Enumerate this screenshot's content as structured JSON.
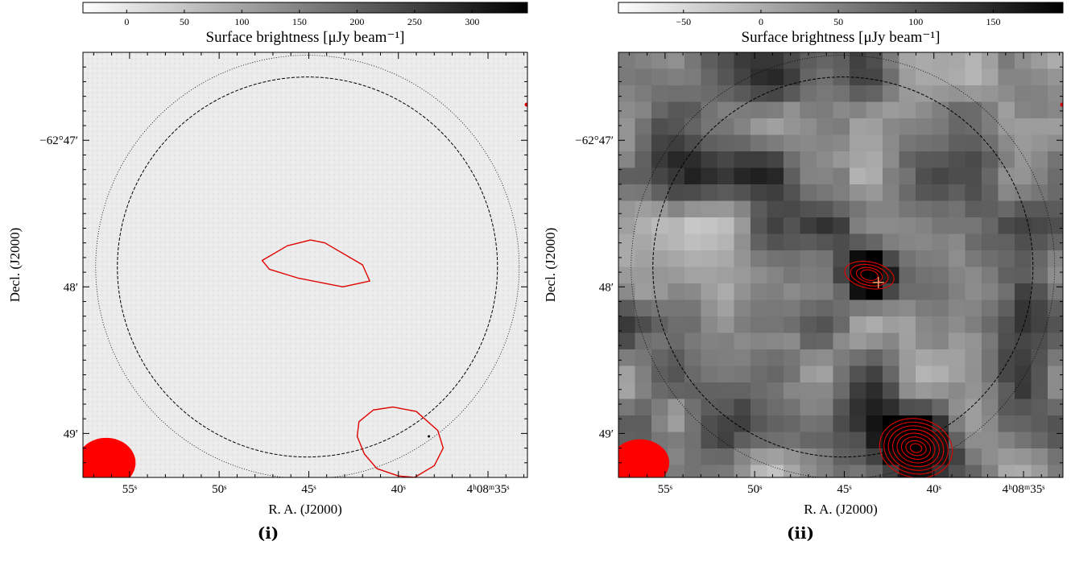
{
  "chart_data": [
    {
      "type": "heatmap",
      "panel_label": "(i)",
      "colorbar": {
        "label": "Surface brightness [μJy beam⁻¹]",
        "range": [
          -38,
          348
        ],
        "ticks": [
          0,
          50,
          100,
          150,
          200,
          250,
          300
        ],
        "colormap": "gray_r"
      },
      "xlabel": "R. A. (J2000)",
      "ylabel": "Decl. (J2000)",
      "x_ticks": [
        {
          "label": "55s",
          "value_s": 55
        },
        {
          "label": "50s",
          "value_s": 50
        },
        {
          "label": "45s",
          "value_s": 45
        },
        {
          "label": "40s",
          "value_s": 40
        },
        {
          "label": "4h08m35s",
          "value_s": 35
        }
      ],
      "y_ticks": [
        {
          "label": "−62°47′",
          "value_arcmin": -47
        },
        {
          "label": "48′",
          "value_arcmin": -48
        },
        {
          "label": "49′",
          "value_arcmin": -49
        }
      ],
      "xlim_s": [
        57.6,
        32.8
      ],
      "ylim_arcmin": [
        -46.4,
        -49.3
      ],
      "contours": [
        {
          "color": "#e00000",
          "ra_s": [
            44.1,
            44.9,
            46.2,
            47.6,
            47.2,
            45.6,
            43.1,
            41.6,
            42.0,
            44.1
          ],
          "dec_arcmin": [
            -47.7,
            -47.68,
            -47.72,
            -47.82,
            -47.88,
            -47.94,
            -48.0,
            -47.96,
            -47.85,
            -47.7
          ]
        },
        {
          "color": "#e00000",
          "ra_s": [
            40.3,
            39.0,
            37.8,
            37.5,
            38.0,
            39.1,
            40.0,
            41.2,
            41.9,
            42.3,
            42.2,
            41.4,
            40.3
          ],
          "dec_arcmin": [
            -48.82,
            -48.85,
            -48.98,
            -49.1,
            -49.22,
            -49.3,
            -49.29,
            -49.24,
            -49.14,
            -49.02,
            -48.92,
            -48.84,
            -48.82
          ]
        }
      ],
      "beam": {
        "ra_s": 56.3,
        "dec_arcmin": -49.2,
        "major_arcmin": 0.2,
        "minor_arcmin": 0.17,
        "color": "#ff0000"
      }
    },
    {
      "type": "heatmap",
      "panel_label": "(ii)",
      "colorbar": {
        "label": "Surface brightness [μJy beam⁻¹]",
        "range": [
          -92,
          195
        ],
        "ticks": [
          -50,
          0,
          50,
          100,
          150
        ],
        "colormap": "gray_r"
      },
      "xlabel": "R. A. (J2000)",
      "ylabel": "Decl. (J2000)",
      "x_ticks": [
        {
          "label": "55s",
          "value_s": 55
        },
        {
          "label": "50s",
          "value_s": 50
        },
        {
          "label": "45s",
          "value_s": 45
        },
        {
          "label": "40s",
          "value_s": 40
        },
        {
          "label": "4h08m35s",
          "value_s": 35
        }
      ],
      "y_ticks": [
        {
          "label": "−62°47′",
          "value_arcmin": -47
        },
        {
          "label": "48′",
          "value_arcmin": -48
        },
        {
          "label": "49′",
          "value_arcmin": -49
        }
      ],
      "xlim_s": [
        57.6,
        32.8
      ],
      "ylim_arcmin": [
        -46.4,
        -49.3
      ],
      "sources": [
        {
          "ra_s": 43.6,
          "dec_arcmin": -47.92,
          "peak": 195,
          "width_arcmin": 0.09
        },
        {
          "ra_s": 41.0,
          "dec_arcmin": -49.1,
          "peak": 190,
          "width_arcmin": 0.14
        }
      ],
      "contours": [
        {
          "color": "#e00000",
          "center_ra_s": 43.6,
          "center_dec_arcmin": -47.92,
          "semi_axes_arcmin": [
            [
              0.17,
              0.09
            ],
            [
              0.13,
              0.07
            ],
            [
              0.09,
              0.05
            ],
            [
              0.06,
              0.035
            ]
          ]
        },
        {
          "color": "#e00000",
          "center_ra_s": 41.0,
          "center_dec_arcmin": -49.1,
          "semi_axes_arcmin": [
            [
              0.25,
              0.2
            ],
            [
              0.22,
              0.175
            ],
            [
              0.19,
              0.15
            ],
            [
              0.16,
              0.125
            ],
            [
              0.13,
              0.1
            ],
            [
              0.1,
              0.075
            ],
            [
              0.07,
              0.05
            ],
            [
              0.04,
              0.03
            ]
          ]
        }
      ],
      "marker": {
        "symbol": "+",
        "ra_s": 43.1,
        "dec_arcmin": -47.97,
        "color": "#ff9966"
      },
      "beam": {
        "ra_s": 56.4,
        "dec_arcmin": -49.2,
        "major_arcmin": 0.2,
        "minor_arcmin": 0.16,
        "color": "#ff0000"
      }
    }
  ]
}
